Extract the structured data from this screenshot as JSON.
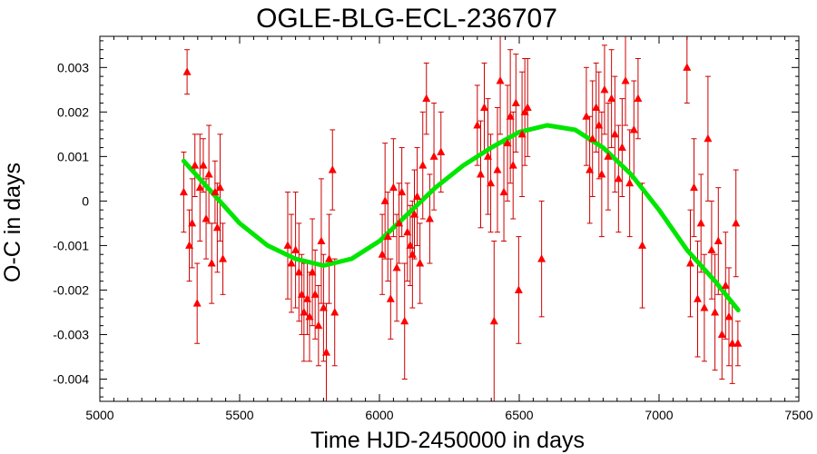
{
  "chart_data": {
    "type": "scatter",
    "title": "OGLE-BLG-ECL-236707",
    "xlabel": "Time HJD-2450000 in days",
    "ylabel": "O-C in days",
    "xlim": [
      5000,
      7500
    ],
    "ylim": [
      -0.0045,
      0.0037
    ],
    "xticks": [
      5000,
      5500,
      6000,
      6500,
      7000,
      7500
    ],
    "xtick_labels": [
      "5000",
      "5500",
      "6000",
      "6500",
      "7000",
      "7500"
    ],
    "yticks": [
      -0.004,
      -0.003,
      -0.002,
      -0.001,
      0,
      0.001,
      0.002,
      0.003
    ],
    "ytick_labels": [
      "-0.004",
      "-0.003",
      "-0.002",
      "-0.001",
      "0",
      "0.001",
      "0.002",
      "0.003"
    ],
    "grid": false,
    "legend": "none",
    "colors": {
      "points": "#ff0000",
      "errorbars": "#cc0000",
      "fit": "#00e600"
    },
    "series": [
      {
        "kind": "points_with_errorbars",
        "x": [
          5300,
          5312,
          5320,
          5330,
          5340,
          5348,
          5358,
          5370,
          5380,
          5390,
          5400,
          5412,
          5420,
          5430,
          5440,
          5672,
          5685,
          5700,
          5712,
          5722,
          5730,
          5742,
          5750,
          5760,
          5770,
          5782,
          5792,
          5800,
          5810,
          5820,
          5832,
          5840,
          6010,
          6020,
          6030,
          6040,
          6050,
          6062,
          6070,
          6080,
          6090,
          6100,
          6110,
          6118,
          6125,
          6135,
          6145,
          6155,
          6168,
          6180,
          6195,
          6220,
          6350,
          6362,
          6375,
          6388,
          6398,
          6410,
          6422,
          6432,
          6445,
          6458,
          6468,
          6478,
          6488,
          6498,
          6510,
          6520,
          6530,
          6580,
          6740,
          6752,
          6762,
          6775,
          6785,
          6795,
          6805,
          6818,
          6830,
          6842,
          6855,
          6868,
          6880,
          6895,
          6910,
          6925,
          6940,
          7100,
          7112,
          7125,
          7138,
          7150,
          7162,
          7175,
          7188,
          7200,
          7212,
          7225,
          7238,
          7250,
          7262,
          7275,
          7282
        ],
        "y": [
          0.0002,
          0.0029,
          -0.001,
          -0.0005,
          0.0008,
          -0.0023,
          0.0003,
          0.0008,
          -0.0004,
          0.0006,
          -0.0014,
          0.0002,
          -0.0006,
          0.0003,
          -0.0013,
          -0.001,
          -0.0014,
          -0.0011,
          -0.0016,
          -0.0021,
          -0.0025,
          -0.0022,
          -0.0026,
          -0.0016,
          -0.0021,
          -0.0028,
          -0.0009,
          -0.0024,
          -0.0034,
          -0.0013,
          0.0007,
          -0.0025,
          -0.0012,
          0.0,
          -0.0008,
          -0.0022,
          0.0003,
          -0.0015,
          -0.0005,
          0.0002,
          -0.0027,
          -0.0007,
          -0.001,
          -0.0012,
          -0.0003,
          0.0001,
          -0.0014,
          0.0008,
          0.0023,
          -0.0004,
          0.001,
          0.0011,
          0.0017,
          0.0006,
          0.0021,
          0.001,
          0.0004,
          -0.0027,
          0.0007,
          0.0027,
          0.0002,
          0.0013,
          0.0019,
          0.0008,
          0.0022,
          -0.002,
          0.0015,
          0.002,
          0.0021,
          -0.0013,
          0.0019,
          0.0007,
          0.0014,
          0.0021,
          0.0017,
          0.0006,
          0.0025,
          0.001,
          0.0023,
          0.0015,
          0.0005,
          0.0012,
          0.0027,
          0.0004,
          0.0016,
          0.0023,
          -0.001,
          0.003,
          -0.0014,
          0.0003,
          -0.0022,
          -0.0005,
          -0.0024,
          0.0014,
          -0.0011,
          -0.0025,
          -0.0009,
          -0.003,
          -0.0019,
          -0.0026,
          -0.0032,
          -0.0005,
          -0.0032
        ],
        "err": [
          0.0009,
          0.0005,
          0.0008,
          0.001,
          0.0007,
          0.0009,
          0.0012,
          0.0006,
          0.0009,
          0.0011,
          0.0009,
          0.0007,
          0.001,
          0.0012,
          0.0008,
          0.0012,
          0.0011,
          0.0013,
          0.0011,
          0.0009,
          0.0011,
          0.0008,
          0.001,
          0.0012,
          0.001,
          0.0009,
          0.0014,
          0.0012,
          0.0011,
          0.001,
          0.0009,
          0.0012,
          0.0009,
          0.0013,
          0.001,
          0.0009,
          0.0011,
          0.0012,
          0.0009,
          0.001,
          0.0013,
          0.0011,
          0.0009,
          0.0012,
          0.001,
          0.0011,
          0.0009,
          0.0012,
          0.0008,
          0.001,
          0.0012,
          0.0009,
          0.0009,
          0.0012,
          0.001,
          0.0013,
          0.0011,
          0.0018,
          0.0014,
          0.0012,
          0.0011,
          0.0013,
          0.0015,
          0.0012,
          0.0011,
          0.0012,
          0.0014,
          0.0012,
          0.0011,
          0.0013,
          0.0011,
          0.0012,
          0.0013,
          0.001,
          0.0012,
          0.0014,
          0.001,
          0.0012,
          0.0011,
          0.0013,
          0.0012,
          0.0011,
          0.001,
          0.0012,
          0.0011,
          0.0009,
          0.0014,
          0.0008,
          0.0012,
          0.0011,
          0.0013,
          0.0011,
          0.0012,
          0.0014,
          0.0011,
          0.0013,
          0.0012,
          0.001,
          0.0012,
          0.0011,
          0.0009,
          0.0012,
          0.0005
        ]
      },
      {
        "kind": "fit_curve",
        "x": [
          5300,
          5400,
          5500,
          5600,
          5700,
          5800,
          5900,
          6000,
          6100,
          6200,
          6300,
          6400,
          6500,
          6600,
          6700,
          6800,
          6900,
          7000,
          7100,
          7200,
          7283
        ],
        "y": [
          0.0009,
          0.0002,
          -0.0005,
          -0.001,
          -0.0013,
          -0.00145,
          -0.0013,
          -0.0009,
          -0.0003,
          0.0003,
          0.0008,
          0.0012,
          0.00155,
          0.0017,
          0.0016,
          0.0012,
          0.0006,
          -0.0002,
          -0.0011,
          -0.0018,
          -0.00245
        ]
      }
    ]
  }
}
